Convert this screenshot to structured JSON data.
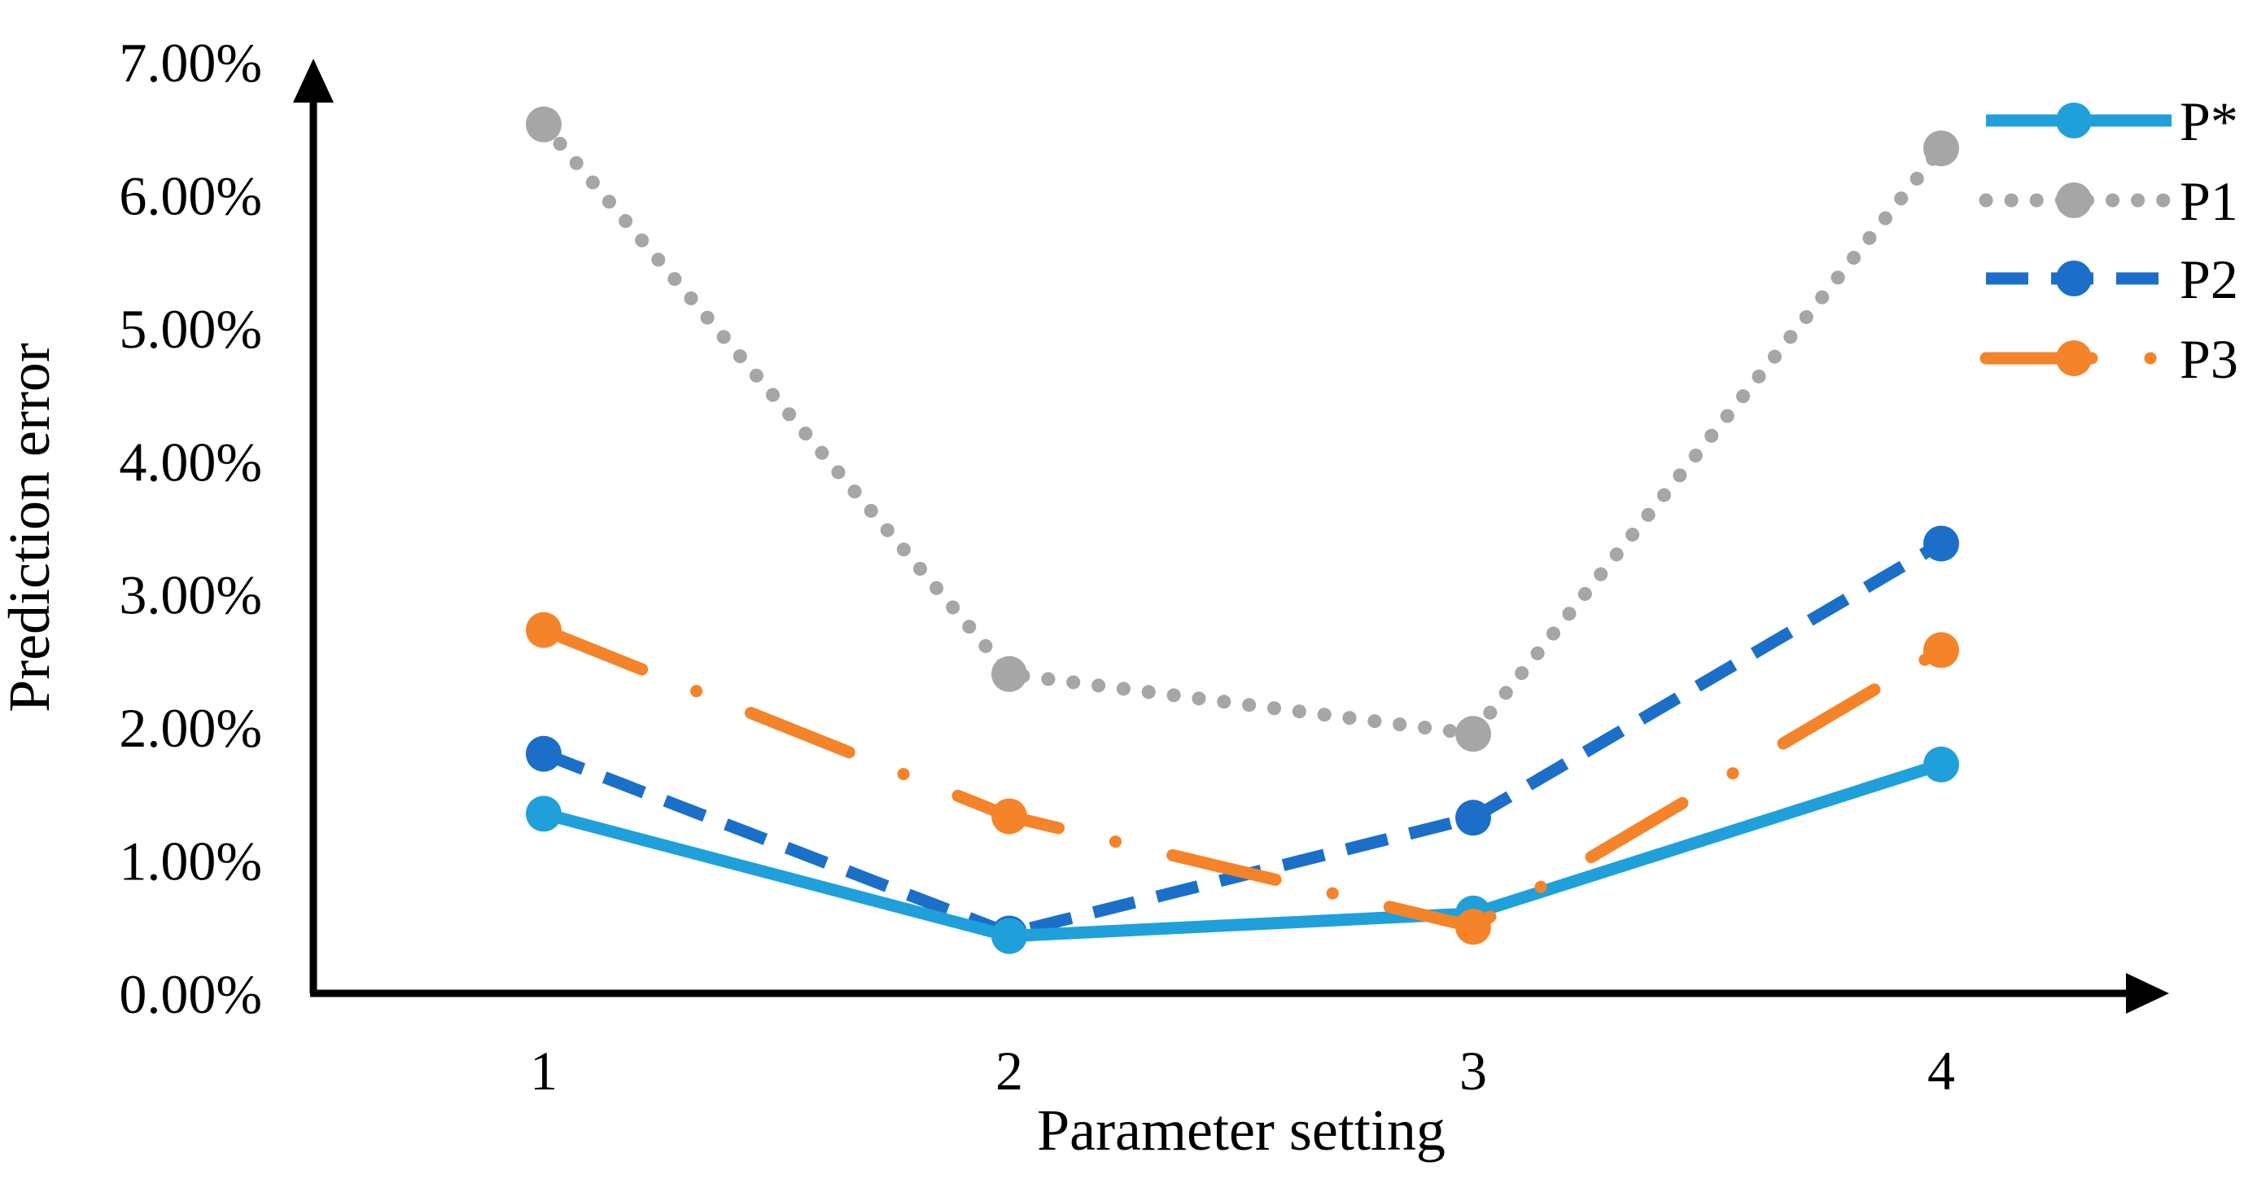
{
  "chart_data": {
    "type": "line",
    "title": "",
    "xlabel": "Parameter setting",
    "ylabel": "Prediction error",
    "categories": [
      "1",
      "2",
      "3",
      "4"
    ],
    "yticks": [
      "0.00%",
      "1.00%",
      "2.00%",
      "3.00%",
      "4.00%",
      "5.00%",
      "6.00%",
      "7.00%"
    ],
    "ylim": [
      0,
      7
    ],
    "grid": false,
    "legend_position": "top-right",
    "series": [
      {
        "name": "P*",
        "color": "#1FA0DB",
        "style": "solid",
        "values": [
          1.35,
          0.43,
          0.6,
          1.72
        ]
      },
      {
        "name": "P1",
        "color": "#A6A6A6",
        "style": "dotted",
        "values": [
          6.53,
          2.4,
          1.95,
          6.35
        ]
      },
      {
        "name": "P2",
        "color": "#1B6FC8",
        "style": "dashed",
        "values": [
          1.8,
          0.45,
          1.32,
          3.38
        ]
      },
      {
        "name": "P3",
        "color": "#F5832A",
        "style": "dashdot",
        "values": [
          2.73,
          1.33,
          0.5,
          2.58
        ]
      }
    ]
  }
}
